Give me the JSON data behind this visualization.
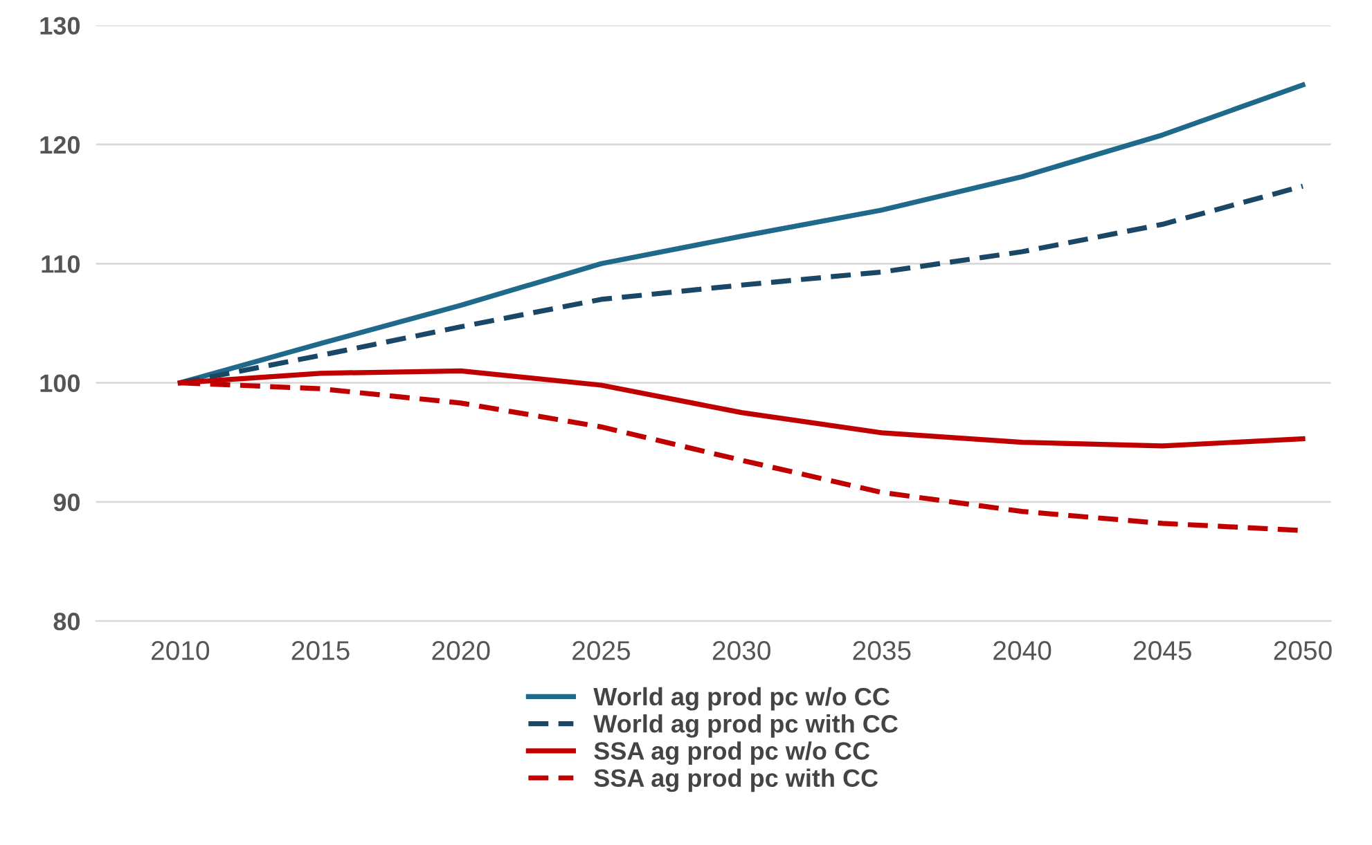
{
  "chart_data": {
    "type": "line",
    "x": [
      2010,
      2015,
      2020,
      2025,
      2030,
      2035,
      2040,
      2045,
      2050
    ],
    "series": [
      {
        "name": "World ag prod pc w/o CC",
        "color": "#1f6a8a",
        "line_style": "solid",
        "values": [
          100,
          103.3,
          106.5,
          110,
          112.3,
          114.5,
          117.3,
          120.8,
          125
        ]
      },
      {
        "name": "World ag prod pc with CC",
        "color": "#1b4767",
        "line_style": "dashed",
        "values": [
          100,
          102.3,
          104.7,
          107,
          108.2,
          109.3,
          111,
          113.3,
          116.5
        ]
      },
      {
        "name": "SSA ag prod pc w/o CC",
        "color": "#c00000",
        "line_style": "solid",
        "values": [
          100,
          100.8,
          101,
          99.8,
          97.5,
          95.8,
          95,
          94.7,
          95.3
        ]
      },
      {
        "name": "SSA ag prod pc with CC",
        "color": "#c00000",
        "line_style": "dashed",
        "values": [
          100,
          99.5,
          98.3,
          96.3,
          93.5,
          90.8,
          89.2,
          88.2,
          87.6
        ]
      }
    ],
    "xlim": [
      2007,
      2051
    ],
    "xticks": [
      2010,
      2015,
      2020,
      2025,
      2030,
      2035,
      2040,
      2045,
      2050
    ],
    "ylim": [
      80,
      130
    ],
    "yticks": [
      80,
      90,
      100,
      110,
      120,
      130
    ],
    "grid": "y",
    "legend": "bottom",
    "marker": "none"
  }
}
